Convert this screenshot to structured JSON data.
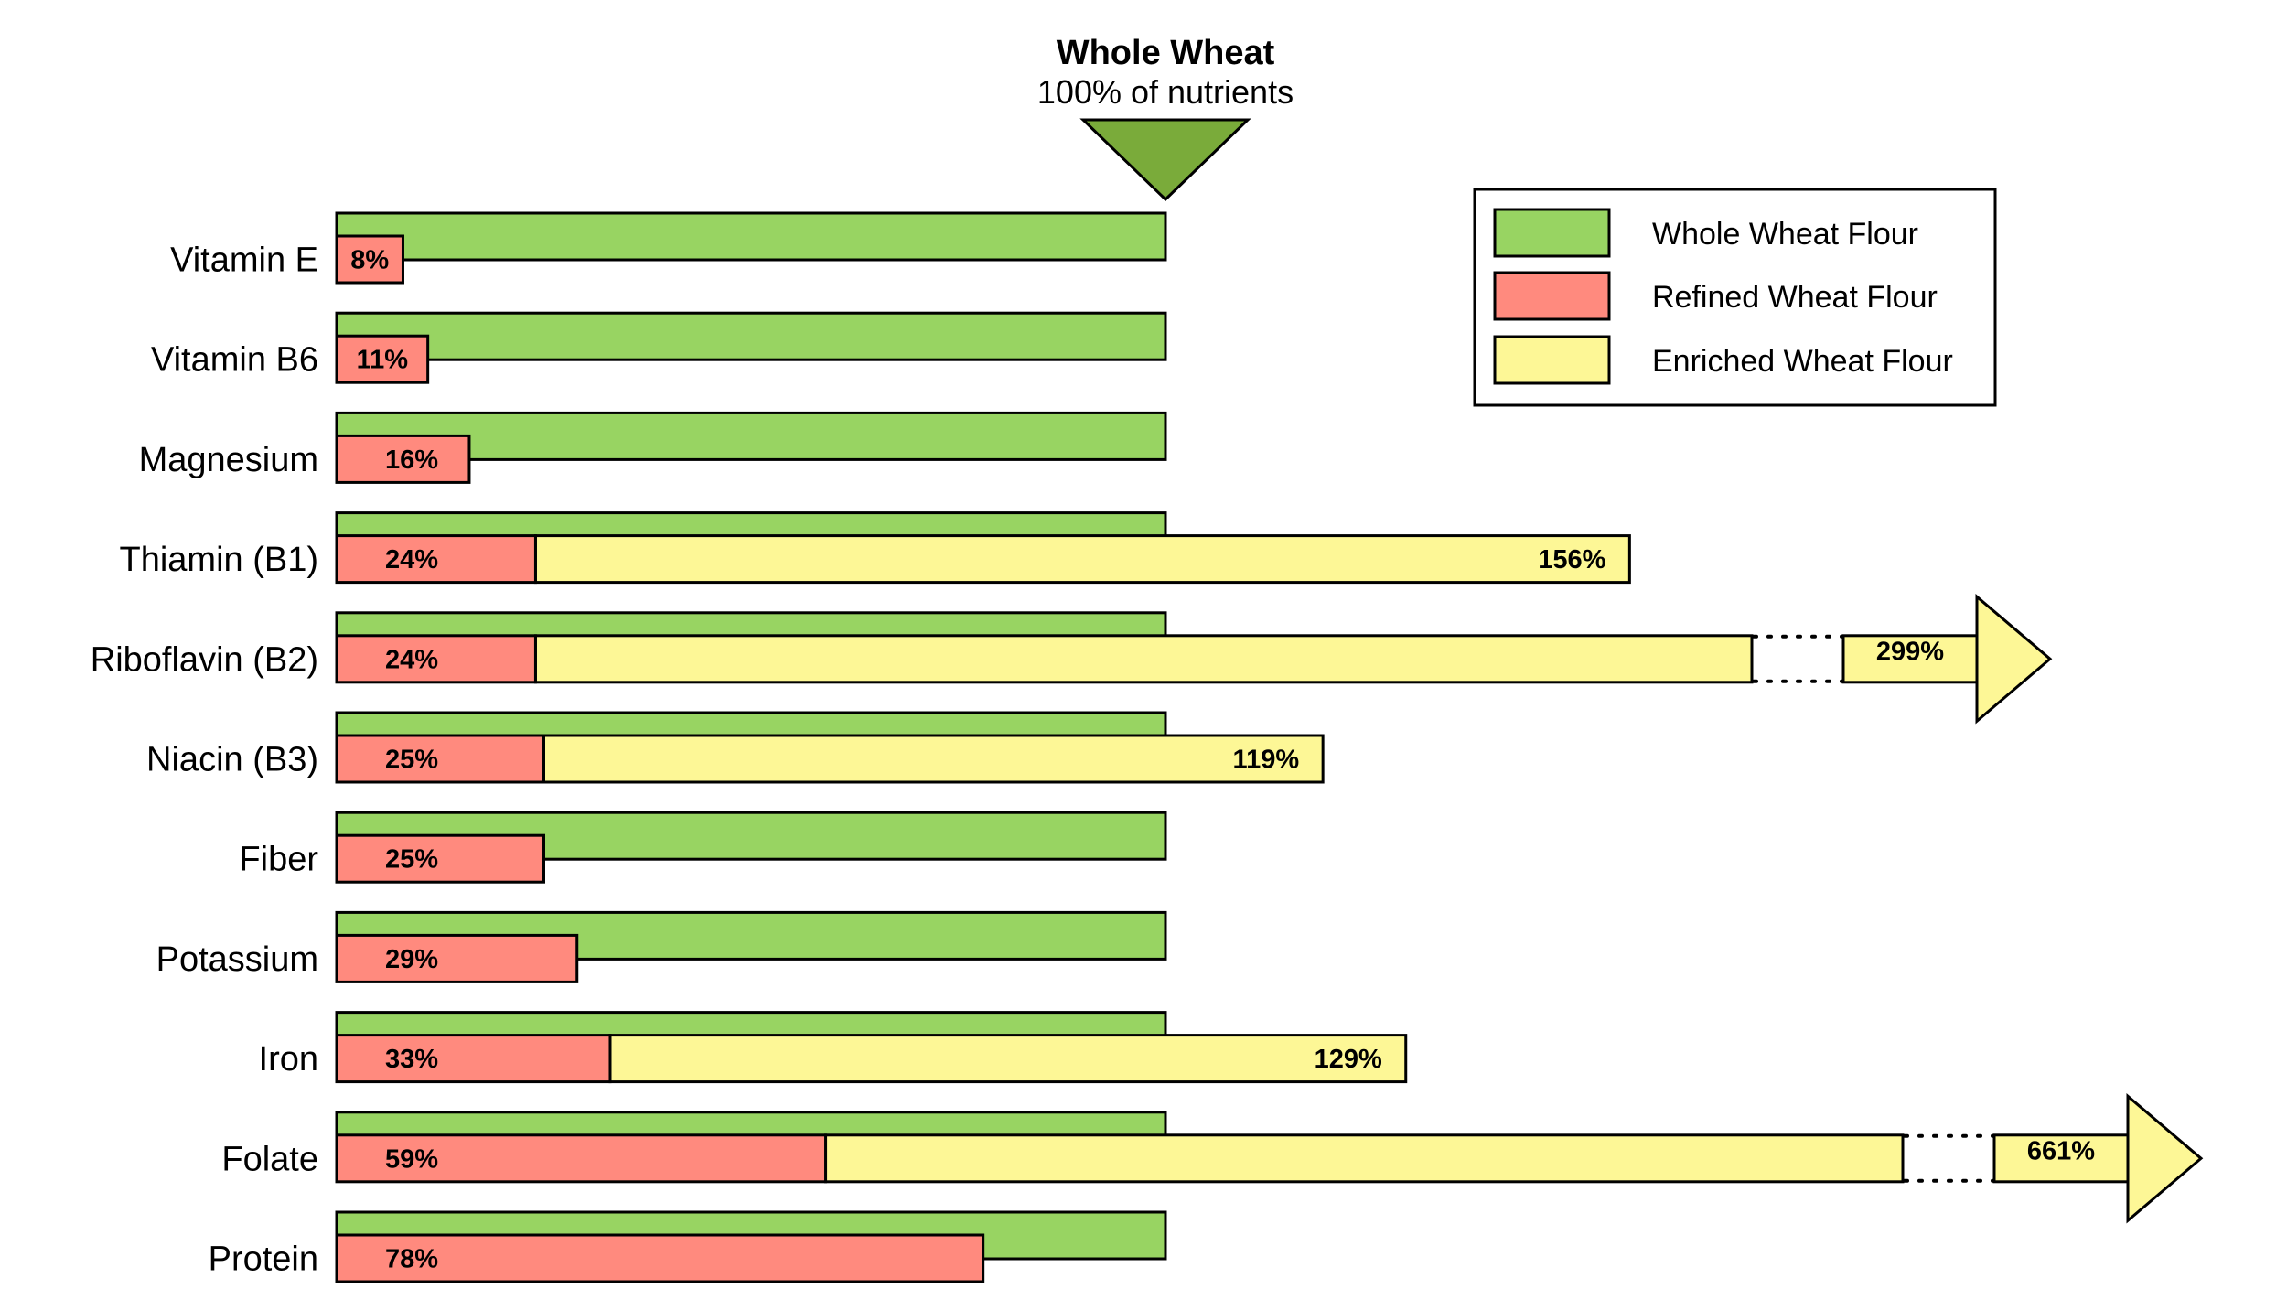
{
  "chart_data": {
    "type": "bar",
    "orientation": "horizontal",
    "header": {
      "title": "Whole Wheat",
      "subtitle": "100% of nutrients"
    },
    "categories": [
      "Vitamin E",
      "Vitamin B6",
      "Magnesium",
      "Thiamin (B1)",
      "Riboflavin (B2)",
      "Niacin (B3)",
      "Fiber",
      "Potassium",
      "Iron",
      "Folate",
      "Protein"
    ],
    "series": [
      {
        "name": "Whole Wheat Flour",
        "values": [
          100,
          100,
          100,
          100,
          100,
          100,
          100,
          100,
          100,
          100,
          100
        ],
        "color": "#98d462"
      },
      {
        "name": "Refined Wheat Flour",
        "values": [
          8,
          11,
          16,
          24,
          24,
          25,
          25,
          29,
          33,
          59,
          78
        ],
        "labels": [
          "8%",
          "11%",
          "16%",
          "24%",
          "24%",
          "25%",
          "25%",
          "29%",
          "33%",
          "59%",
          "78%"
        ],
        "color": "#ff8a7e"
      },
      {
        "name": "Enriched Wheat Flour",
        "values": [
          null,
          null,
          null,
          156,
          299,
          119,
          null,
          null,
          129,
          661,
          null
        ],
        "labels": [
          null,
          null,
          null,
          "156%",
          "299%",
          "119%",
          null,
          null,
          "129%",
          "661%",
          null
        ],
        "truncated": [
          false,
          false,
          false,
          false,
          true,
          false,
          false,
          false,
          false,
          true,
          false
        ],
        "color": "#fdf796"
      }
    ],
    "xlim": [
      0,
      100
    ],
    "legend_position": "top-right",
    "grid": false,
    "marker_color": "#7aab3a"
  }
}
